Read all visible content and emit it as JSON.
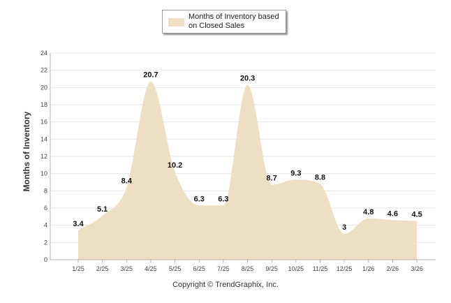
{
  "chart_data": {
    "type": "area",
    "categories": [
      "1/25",
      "2/25",
      "3/25",
      "4/25",
      "5/25",
      "6/25",
      "7/25",
      "8/25",
      "9/25",
      "10/25",
      "11/25",
      "12/25",
      "1/26",
      "2/26",
      "3/26"
    ],
    "series": [
      {
        "name": "Months of Inventory based on Closed Sales",
        "values": [
          3.4,
          5.1,
          8.4,
          20.7,
          10.2,
          6.3,
          6.3,
          20.3,
          8.7,
          9.3,
          8.8,
          3,
          4.8,
          4.6,
          4.5
        ],
        "labels": [
          "3.4",
          "5.1",
          "8.4",
          "20.7",
          "10.2",
          "6.3",
          "6.3",
          "20.3",
          "8.7",
          "9.3",
          "8.8",
          "3",
          "4.8",
          "4.6",
          "4.5"
        ]
      }
    ],
    "title": "",
    "xlabel": "",
    "ylabel": "Months of Inventory",
    "ylim": [
      0,
      24
    ],
    "yticks": [
      "0",
      "2",
      "4",
      "6",
      "8",
      "10",
      "12",
      "14",
      "16",
      "18",
      "20",
      "22",
      "24"
    ],
    "grid": true,
    "legend": "top-center"
  },
  "colors": {
    "fill": "#eddfc4",
    "grid": "#e6e6e6",
    "axis": "#b0b0b0"
  },
  "footer": {
    "copyright": "Copyright © TrendGraphix, Inc."
  }
}
